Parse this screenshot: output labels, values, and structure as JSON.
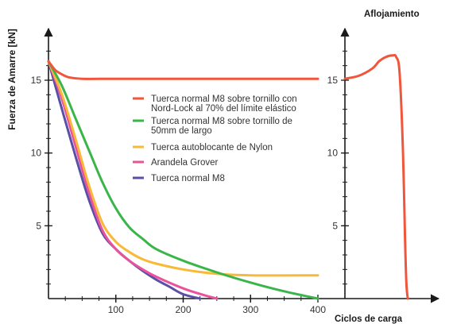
{
  "chart_data": [
    {
      "type": "line",
      "title": "",
      "ylabel": "Fuerza de Amarre  [kN]",
      "xlabel": "Ciclos de carga",
      "xlim": [
        0,
        400
      ],
      "ylim": [
        0,
        18
      ],
      "x_ticks": [
        "100",
        "200",
        "300",
        "400"
      ],
      "y_ticks": [
        "5",
        "10",
        "15"
      ],
      "x_tick_values": [
        100,
        200,
        300,
        400
      ],
      "y_tick_values": [
        5,
        10,
        15
      ],
      "grid": false,
      "legend_position": "center",
      "series": [
        {
          "name": "Tuerca normal M8 sobre tornillo con Nord-Lock al 70% del límite elástico",
          "legend_lines": [
            "Tuerca normal M8 sobre tornillo con",
            "Nord-Lock al 70% del límite elástico"
          ],
          "color": "#f0563c",
          "x": [
            0,
            10,
            20,
            30,
            50,
            100,
            200,
            300,
            400
          ],
          "y": [
            16.3,
            15.7,
            15.4,
            15.2,
            15.1,
            15.1,
            15.1,
            15.1,
            15.1
          ]
        },
        {
          "name": "Tuerca normal M8 sobre tornillo de 50mm de largo",
          "legend_lines": [
            "Tuerca normal M8 sobre tornillo de",
            "50mm de largo"
          ],
          "color": "#3ab54a",
          "x": [
            0,
            20,
            40,
            60,
            80,
            100,
            120,
            140,
            160,
            200,
            250,
            300,
            350,
            400
          ],
          "y": [
            16.3,
            14.6,
            12.4,
            10.2,
            8.0,
            6.2,
            4.9,
            4.1,
            3.4,
            2.6,
            1.8,
            1.1,
            0.5,
            0.0
          ]
        },
        {
          "name": "Tuerca autoblocante de Nylon",
          "legend_lines": [
            "Tuerca autoblocante de Nylon"
          ],
          "color": "#f9b938",
          "x": [
            0,
            20,
            40,
            60,
            80,
            100,
            120,
            140,
            160,
            200,
            250,
            300,
            400
          ],
          "y": [
            16.3,
            14.0,
            11.0,
            7.8,
            5.2,
            3.9,
            3.2,
            2.7,
            2.4,
            2.0,
            1.7,
            1.6,
            1.6
          ]
        },
        {
          "name": "Arandela Grover",
          "legend_lines": [
            "Arandela Grover"
          ],
          "color": "#e8539b",
          "x": [
            0,
            20,
            40,
            60,
            80,
            100,
            120,
            140,
            160,
            200,
            230,
            250
          ],
          "y": [
            16.3,
            13.7,
            10.5,
            7.3,
            4.7,
            3.4,
            2.6,
            2.0,
            1.5,
            0.7,
            0.25,
            0.0
          ]
        },
        {
          "name": "Tuerca normal M8",
          "legend_lines": [
            "Tuerca normal M8"
          ],
          "color": "#5b4ea6",
          "x": [
            0,
            20,
            40,
            60,
            80,
            100,
            120,
            140,
            160,
            180,
            200,
            225
          ],
          "y": [
            16.3,
            13.0,
            9.8,
            6.8,
            4.5,
            3.4,
            2.6,
            1.9,
            1.3,
            0.8,
            0.3,
            0.0
          ]
        }
      ]
    },
    {
      "type": "line",
      "title": "Aflojamiento",
      "ylabel": "",
      "xlabel": "",
      "ylim": [
        0,
        18
      ],
      "y_ticks": [
        "5",
        "10",
        "15"
      ],
      "y_tick_values": [
        5,
        10,
        15
      ],
      "grid": false,
      "series": [
        {
          "name": "",
          "color": "#f0563c",
          "x": [
            0,
            20,
            40,
            50,
            60,
            70,
            75,
            80,
            85,
            88,
            90,
            92
          ],
          "y": [
            15.1,
            15.3,
            15.8,
            16.3,
            16.6,
            16.7,
            16.6,
            15.5,
            10.0,
            4.0,
            1.0,
            0.0
          ]
        }
      ]
    }
  ]
}
